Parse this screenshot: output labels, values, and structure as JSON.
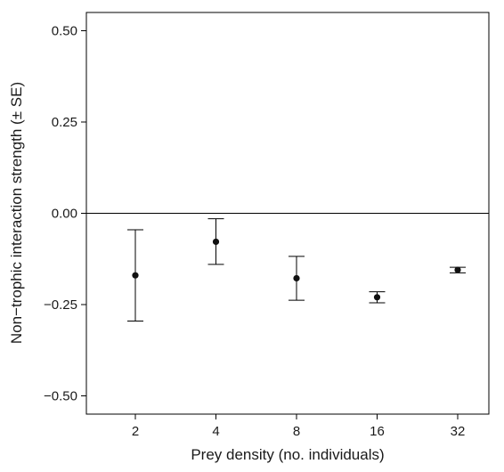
{
  "chart_data": {
    "type": "scatter",
    "title": "",
    "xlabel": "Prey density (no. individuals)",
    "ylabel": "Non−trophic interaction strength (± SE)",
    "categories": [
      "2",
      "4",
      "8",
      "16",
      "32"
    ],
    "series": [
      {
        "values": [
          -0.17,
          -0.078,
          -0.178,
          -0.23,
          -0.155
        ],
        "error_low": [
          -0.295,
          -0.14,
          -0.238,
          -0.245,
          -0.163
        ],
        "error_high": [
          -0.045,
          -0.015,
          -0.118,
          -0.215,
          -0.148
        ]
      }
    ],
    "ylim": [
      -0.55,
      0.55
    ],
    "yticks": [
      -0.5,
      -0.25,
      0.0,
      0.25,
      0.5
    ],
    "ytick_labels": [
      "−0.50",
      "−0.25",
      "0.00",
      "0.25",
      "0.50"
    ],
    "reference_line": 0,
    "grid": false,
    "colors": {
      "marker": "#111111",
      "axis": "#000000"
    }
  }
}
